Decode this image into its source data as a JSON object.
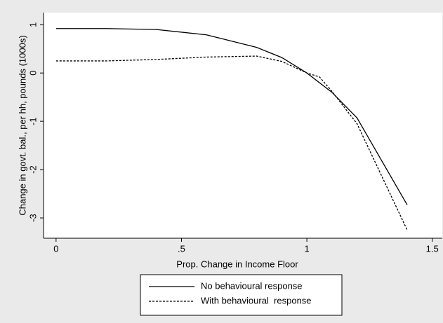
{
  "chart_data": {
    "type": "line",
    "xlabel": "Prop. Change in Income Floor",
    "ylabel": "Change in govt. bal., per hh, pounds (1000s)",
    "xlim": [
      -0.05,
      1.54
    ],
    "ylim": [
      -3.42,
      1.25
    ],
    "xticks": [
      0,
      {
        "value": 0.5,
        "label": ".5"
      },
      1,
      1.5
    ],
    "yticks": [
      -3,
      -2,
      -1,
      0,
      1
    ],
    "grid": false,
    "legend": "bottom",
    "series": [
      {
        "name": "No behavioural response",
        "color": "#000000",
        "dash": false,
        "x": [
          0,
          0.2,
          0.4,
          0.6,
          0.8,
          0.9,
          1.0,
          1.1,
          1.2,
          1.4
        ],
        "values": [
          0.92,
          0.92,
          0.9,
          0.79,
          0.53,
          0.32,
          0.0,
          -0.4,
          -0.93,
          -2.73
        ]
      },
      {
        "name": "With behavioural  response",
        "color": "#000000",
        "dash": true,
        "x": [
          0,
          0.2,
          0.4,
          0.6,
          0.8,
          0.9,
          1.0,
          1.05,
          1.1,
          1.2,
          1.4
        ],
        "values": [
          0.25,
          0.25,
          0.28,
          0.33,
          0.35,
          0.24,
          0.0,
          -0.08,
          -0.38,
          -1.05,
          -3.25
        ]
      }
    ]
  }
}
